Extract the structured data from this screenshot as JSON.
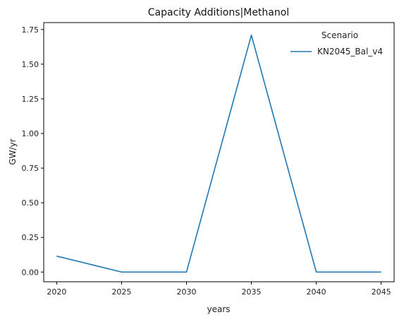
{
  "chart_data": {
    "type": "line",
    "title": "Capacity Additions|Methanol",
    "xlabel": "years",
    "ylabel": "GW/yr",
    "x": [
      2020,
      2025,
      2030,
      2035,
      2040,
      2045
    ],
    "x_ticks": [
      "2020",
      "2025",
      "2030",
      "2035",
      "2040",
      "2045"
    ],
    "y_ticks": [
      "0.00",
      "0.25",
      "0.50",
      "0.75",
      "1.00",
      "1.25",
      "1.50",
      "1.75"
    ],
    "xlim": [
      2019,
      2046
    ],
    "ylim": [
      -0.07,
      1.8
    ],
    "grid": false,
    "legend": {
      "title": "Scenario",
      "placement": "top-right"
    },
    "series": [
      {
        "name": "KN2045_Bal_v4",
        "color": "#1f77b4",
        "values": [
          0.115,
          0.0,
          0.0,
          1.71,
          0.0,
          0.0
        ]
      }
    ]
  }
}
